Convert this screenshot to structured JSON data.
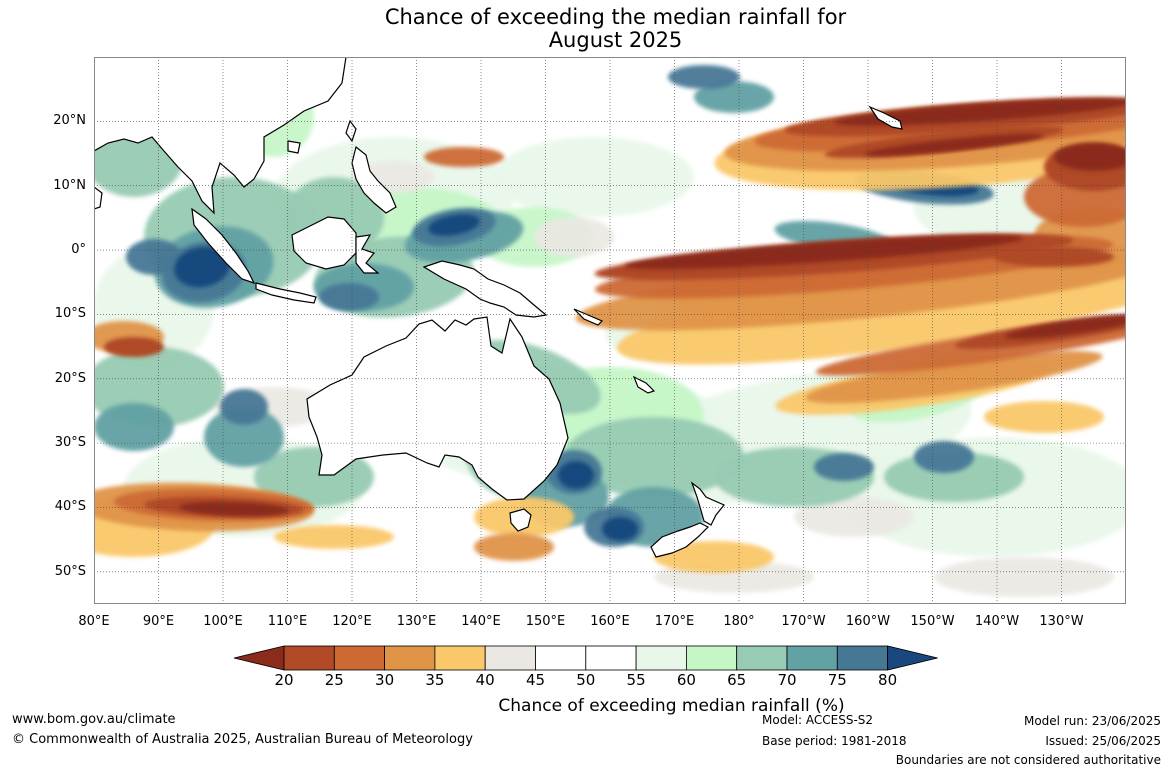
{
  "title": {
    "line1": "Chance of exceeding the median rainfall for",
    "line2": "August 2025"
  },
  "map": {
    "lat_labels": [
      "20°N",
      "10°N",
      "0°",
      "10°S",
      "20°S",
      "30°S",
      "40°S",
      "50°S"
    ],
    "lon_labels": [
      "80°E",
      "90°E",
      "100°E",
      "110°E",
      "120°E",
      "130°E",
      "140°E",
      "150°E",
      "160°E",
      "170°E",
      "180°",
      "170°W",
      "160°W",
      "150°W",
      "140°W",
      "130°W"
    ],
    "extent": {
      "lon_min": 80,
      "lon_max": 240,
      "lat_min": -55,
      "lat_max": 30
    }
  },
  "legend": {
    "ticks": [
      "20",
      "25",
      "30",
      "35",
      "40",
      "45",
      "50",
      "55",
      "60",
      "65",
      "70",
      "75",
      "80"
    ],
    "colors": [
      "#8b2b1b",
      "#b04a27",
      "#cd6a34",
      "#e09448",
      "#fac86b",
      "#ebe8e3",
      "#ffffff",
      "#ffffff",
      "#e8f7e9",
      "#c4f6c6",
      "#97cbb3",
      "#62a1a4",
      "#467896",
      "#18487e"
    ],
    "label": "Chance of exceeding median rainfall (%)"
  },
  "footer": {
    "website": "www.bom.gov.au/climate",
    "copyright": "© Commonwealth of Australia 2025, Australian Bureau of Meteorology",
    "model": "Model: ACCESS-S2",
    "base_period": "Base period: 1981-2018",
    "model_run": "Model run: 23/06/2025",
    "issued": "Issued: 25/06/2025",
    "disclaimer": "Boundaries are not considered authoritative"
  }
}
